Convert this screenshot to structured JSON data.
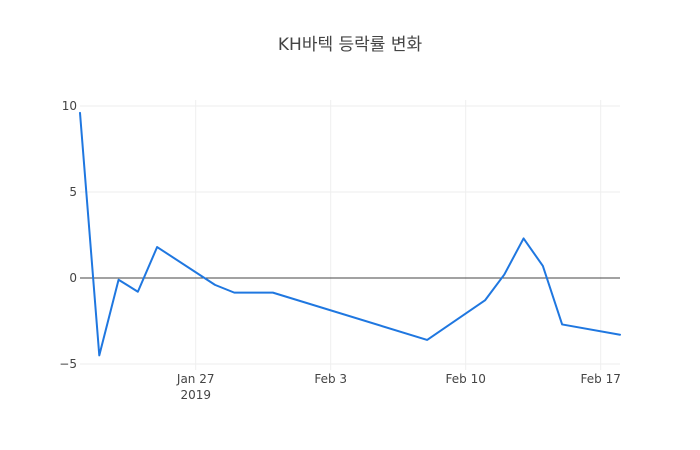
{
  "chart_data": {
    "type": "line",
    "title": "KH바텍 등락률 변화",
    "xlabel": "",
    "ylabel": "",
    "x": [
      "2019-01-21",
      "2019-01-22",
      "2019-01-23",
      "2019-01-24",
      "2019-01-25",
      "2019-01-28",
      "2019-01-29",
      "2019-01-31",
      "2019-02-08",
      "2019-02-11",
      "2019-02-12",
      "2019-02-13",
      "2019-02-14",
      "2019-02-15",
      "2019-02-18"
    ],
    "series": [
      {
        "values": [
          9.6,
          -4.5,
          -0.1,
          -0.8,
          1.8,
          -0.4,
          -0.85,
          -0.85,
          -3.6,
          -1.3,
          0.2,
          2.3,
          0.7,
          -2.7,
          -3.3
        ],
        "color": "#1f77e0"
      }
    ],
    "xlim": [
      "2019-01-21",
      "2019-02-18"
    ],
    "ylim": [
      -5,
      10
    ],
    "x_ticks": [
      {
        "date": "2019-01-27",
        "label": "Jan 27",
        "sublabel": "2019"
      },
      {
        "date": "2019-02-03",
        "label": "Feb 3",
        "sublabel": ""
      },
      {
        "date": "2019-02-10",
        "label": "Feb 10",
        "sublabel": ""
      },
      {
        "date": "2019-02-17",
        "label": "Feb 17",
        "sublabel": ""
      }
    ],
    "y_ticks": [
      {
        "value": -5,
        "label": "−5"
      },
      {
        "value": 0,
        "label": "0"
      },
      {
        "value": 5,
        "label": "5"
      },
      {
        "value": 10,
        "label": "10"
      }
    ],
    "grid": true,
    "legend": "none"
  }
}
